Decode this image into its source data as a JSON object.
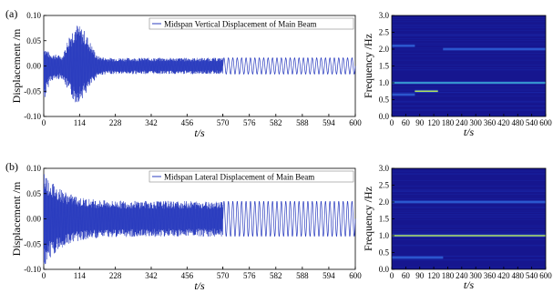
{
  "chart_data": [
    {
      "type": "line",
      "panel_label": "(a)",
      "ylabel": "Displacement /m",
      "xlabel": "t/s",
      "legend": "Midspan Vertical Displacement of Main Beam",
      "legend_position": "top-right",
      "ylim": [
        -0.1,
        0.1
      ],
      "yticks": [
        "0.10",
        "0.05",
        "0.00",
        "-0.05",
        "-0.10"
      ],
      "xticks_compressed": [
        "0",
        "114",
        "228",
        "342",
        "456",
        "570"
      ],
      "xticks_zoomed": [
        "570",
        "576",
        "582",
        "588",
        "594",
        "600"
      ],
      "x_break": 570,
      "series": [
        {
          "color": "#2b3dbf",
          "envelope": [
            [
              0,
              0.04
            ],
            [
              20,
              0.025
            ],
            [
              60,
              0.02
            ],
            [
              80,
              0.06
            ],
            [
              100,
              0.085
            ],
            [
              114,
              0.08
            ],
            [
              130,
              0.07
            ],
            [
              150,
              0.045
            ],
            [
              170,
              0.02
            ],
            [
              200,
              0.016
            ],
            [
              570,
              0.016
            ]
          ],
          "envelope_lower": [
            [
              0,
              -0.075
            ],
            [
              20,
              -0.03
            ],
            [
              60,
              -0.025
            ],
            [
              80,
              -0.055
            ],
            [
              100,
              -0.075
            ],
            [
              114,
              -0.07
            ],
            [
              130,
              -0.06
            ],
            [
              150,
              -0.04
            ],
            [
              170,
              -0.02
            ],
            [
              200,
              -0.016
            ],
            [
              570,
              -0.016
            ]
          ],
          "zoom_amplitude": 0.016,
          "zoom_frequency_hz": 1.0
        }
      ]
    },
    {
      "type": "heatmap",
      "panel_label": "(a)",
      "ylabel": "Frequency /Hz",
      "xlabel": "t/s",
      "ylim": [
        0,
        3.0
      ],
      "yticks": [
        "3.0",
        "2.5",
        "2.0",
        "1.5",
        "1.0",
        "0.5",
        "0.0"
      ],
      "xticks": [
        "0",
        "60",
        "90",
        "120",
        "180",
        "240",
        "300",
        "360",
        "420",
        "480",
        "540",
        "600"
      ],
      "colormap": [
        "#16168f",
        "#1b2bb0",
        "#2e5fd6",
        "#3fb6d6",
        "#b8e65a"
      ],
      "bands": [
        {
          "t": [
            0,
            600
          ],
          "f": 1.0,
          "level": 0.75
        },
        {
          "t": [
            0,
            90
          ],
          "f": 0.65,
          "level": 0.45
        },
        {
          "t": [
            200,
            600
          ],
          "f": 2.0,
          "level": 0.55
        },
        {
          "t": [
            0,
            90
          ],
          "f": 2.1,
          "level": 0.4
        },
        {
          "t": [
            90,
            180
          ],
          "f": 0.75,
          "level": 1.0
        }
      ]
    },
    {
      "type": "line",
      "panel_label": "(b)",
      "ylabel": "Displacement /m",
      "xlabel": "t/s",
      "legend": "Midspan Lateral Displacement of Main Beam",
      "legend_position": "top-right",
      "ylim": [
        -0.1,
        0.1
      ],
      "yticks": [
        "0.10",
        "0.05",
        "0.00",
        "-0.05",
        "-0.10"
      ],
      "xticks_compressed": [
        "0",
        "114",
        "228",
        "342",
        "456",
        "570"
      ],
      "xticks_zoomed": [
        "570",
        "576",
        "582",
        "588",
        "594",
        "600"
      ],
      "x_break": 570,
      "series": [
        {
          "color": "#2b3dbf",
          "envelope": [
            [
              0,
              0.1
            ],
            [
              10,
              0.085
            ],
            [
              40,
              0.065
            ],
            [
              80,
              0.05
            ],
            [
              120,
              0.042
            ],
            [
              200,
              0.036
            ],
            [
              570,
              0.035
            ]
          ],
          "envelope_lower": [
            [
              0,
              -0.1
            ],
            [
              10,
              -0.085
            ],
            [
              40,
              -0.065
            ],
            [
              80,
              -0.05
            ],
            [
              120,
              -0.042
            ],
            [
              200,
              -0.036
            ],
            [
              570,
              -0.035
            ]
          ],
          "zoom_amplitude": 0.035,
          "zoom_frequency_hz": 1.0
        }
      ]
    },
    {
      "type": "heatmap",
      "panel_label": "(b)",
      "ylabel": "Frequency /Hz",
      "xlabel": "t/s",
      "ylim": [
        0,
        3.0
      ],
      "yticks": [
        "3.0",
        "2.5",
        "2.0",
        "1.5",
        "1.0",
        "0.5",
        "0.0"
      ],
      "xticks": [
        "0",
        "60",
        "90",
        "120",
        "180",
        "240",
        "300",
        "360",
        "420",
        "480",
        "540",
        "600"
      ],
      "colormap": [
        "#16168f",
        "#1b2bb0",
        "#2e5fd6",
        "#3fb6d6",
        "#b8e65a"
      ],
      "bands": [
        {
          "t": [
            0,
            600
          ],
          "f": 1.0,
          "level": 1.0
        },
        {
          "t": [
            0,
            200
          ],
          "f": 0.35,
          "level": 0.5
        },
        {
          "t": [
            0,
            600
          ],
          "f": 2.0,
          "level": 0.3
        }
      ]
    }
  ]
}
